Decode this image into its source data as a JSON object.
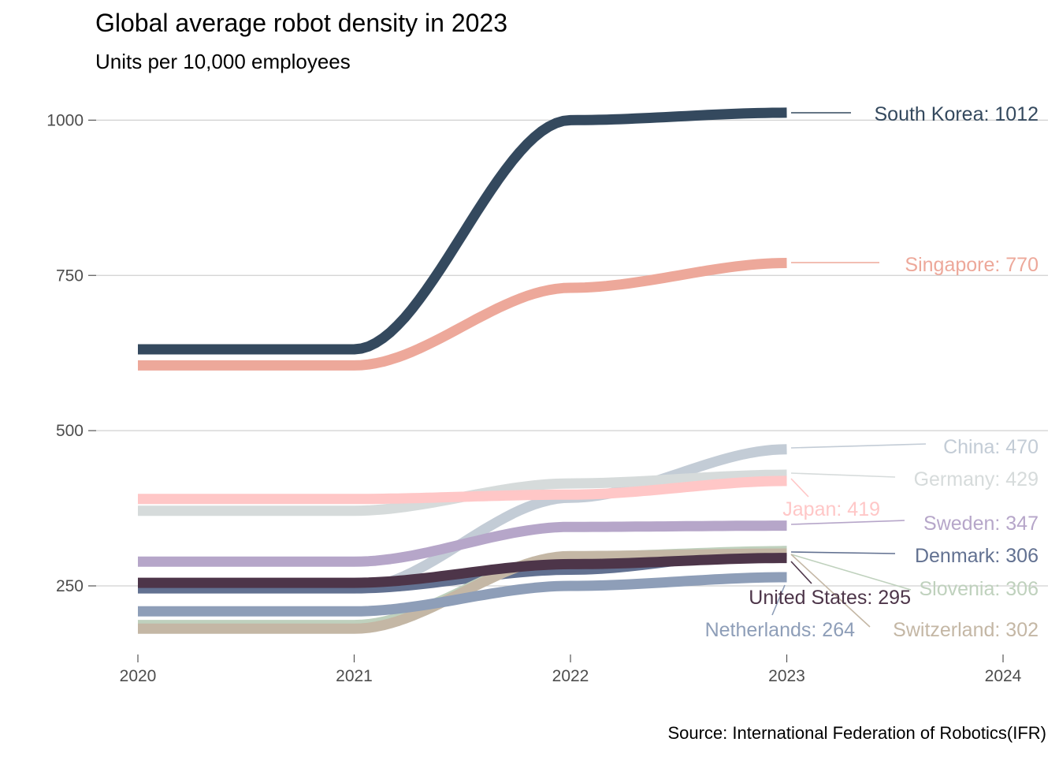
{
  "chart_data": {
    "type": "line",
    "title": "Global average robot density in 2023",
    "subtitle": "Units per 10,000 employees",
    "caption": "Source: International Federation of Robotics(IFR)",
    "xlabel": "",
    "ylabel": "",
    "x": [
      2020,
      2021,
      2022,
      2023
    ],
    "xlim": [
      2020,
      2024
    ],
    "ylim": [
      140,
      1040
    ],
    "x_ticks": [
      "2020",
      "2021",
      "2022",
      "2023",
      "2024"
    ],
    "y_ticks": [
      "250",
      "500",
      "750",
      "1000"
    ],
    "grid": "horizontal",
    "legend": "none",
    "series": [
      {
        "name": "South Korea",
        "values": [
          631,
          631,
          1000,
          1012
        ],
        "color": "#34495e",
        "label": "South Korea: 1012"
      },
      {
        "name": "Singapore",
        "values": [
          605,
          605,
          730,
          770
        ],
        "color": "#eda89a",
        "label": "Singapore: 770"
      },
      {
        "name": "China",
        "values": [
          246,
          246,
          392,
          470
        ],
        "color": "#c3ccd6",
        "label": "China: 470"
      },
      {
        "name": "Germany",
        "values": [
          371,
          371,
          415,
          429
        ],
        "color": "#d6dbdb",
        "label": "Germany: 429"
      },
      {
        "name": "Japan",
        "values": [
          390,
          390,
          397,
          419
        ],
        "color": "#ffc7c7",
        "label": "Japan: 419"
      },
      {
        "name": "Sweden",
        "values": [
          289,
          289,
          345,
          347
        ],
        "color": "#b6a6c9",
        "label": "Sweden: 347"
      },
      {
        "name": "Denmark",
        "values": [
          246,
          246,
          276,
          306
        ],
        "color": "#627191",
        "label": "Denmark: 306"
      },
      {
        "name": "Slovenia",
        "values": [
          187,
          187,
          297,
          306
        ],
        "color": "#bfd1bd",
        "label": "Slovenia: 306"
      },
      {
        "name": "Switzerland",
        "values": [
          181,
          181,
          298,
          302
        ],
        "color": "#c4b7a5",
        "label": "Switzerland: 302"
      },
      {
        "name": "United States",
        "values": [
          255,
          255,
          285,
          295
        ],
        "color": "#4d3549",
        "label": "United States: 295"
      },
      {
        "name": "Netherlands",
        "values": [
          209,
          209,
          250,
          264
        ],
        "color": "#8e9eb8",
        "label": "Netherlands: 264"
      }
    ]
  }
}
